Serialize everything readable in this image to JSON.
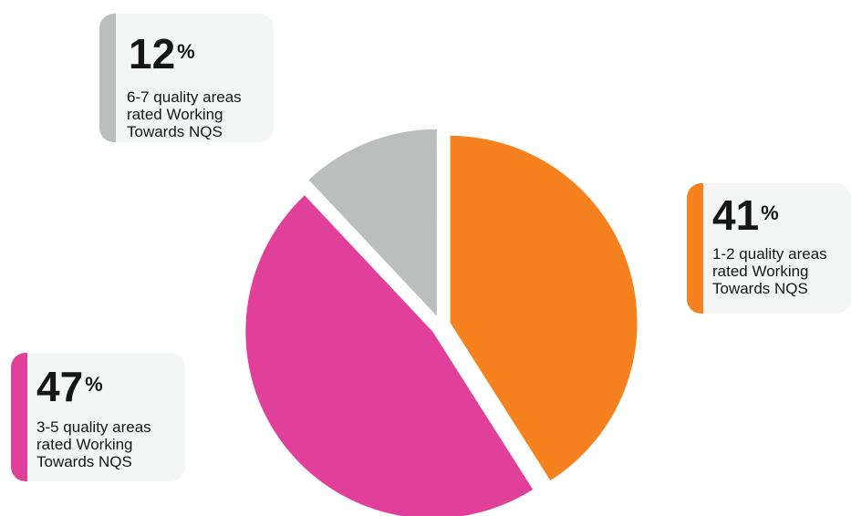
{
  "chart_data": {
    "type": "pie",
    "slices": [
      {
        "value": 41,
        "percent_label": "41",
        "description": "1-2 quality areas rated Working Towards NQS",
        "color": "#f5821f"
      },
      {
        "value": 47,
        "percent_label": "47",
        "description": "3-5 quality areas rated Working Towards NQS",
        "color": "#e0409a"
      },
      {
        "value": 12,
        "percent_label": "12",
        "description": "6-7 quality areas rated Working Towards NQS",
        "color": "#bcbdbd"
      }
    ],
    "percent_sign": "%"
  }
}
